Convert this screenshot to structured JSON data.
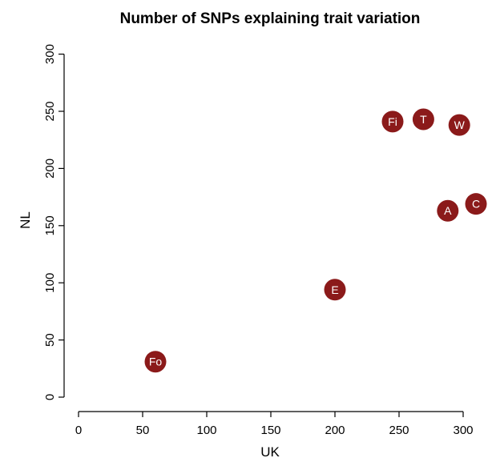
{
  "chart_data": {
    "type": "scatter",
    "title": "Number of SNPs explaining trait variation",
    "xlabel": "UK",
    "ylabel": "NL",
    "xlim": [
      -10,
      320
    ],
    "ylim": [
      -10,
      320
    ],
    "xticks": [
      0,
      50,
      100,
      150,
      200,
      250,
      300
    ],
    "yticks": [
      0,
      50,
      100,
      150,
      200,
      250,
      300
    ],
    "grid": false,
    "point_color": "#8b1a1a",
    "points": [
      {
        "label": "Fo",
        "x": 60,
        "y": 31
      },
      {
        "label": "E",
        "x": 200,
        "y": 94
      },
      {
        "label": "Fi",
        "x": 245,
        "y": 241
      },
      {
        "label": "T",
        "x": 269,
        "y": 243
      },
      {
        "label": "W",
        "x": 297,
        "y": 238
      },
      {
        "label": "A",
        "x": 288,
        "y": 163
      },
      {
        "label": "C",
        "x": 310,
        "y": 169
      }
    ]
  }
}
